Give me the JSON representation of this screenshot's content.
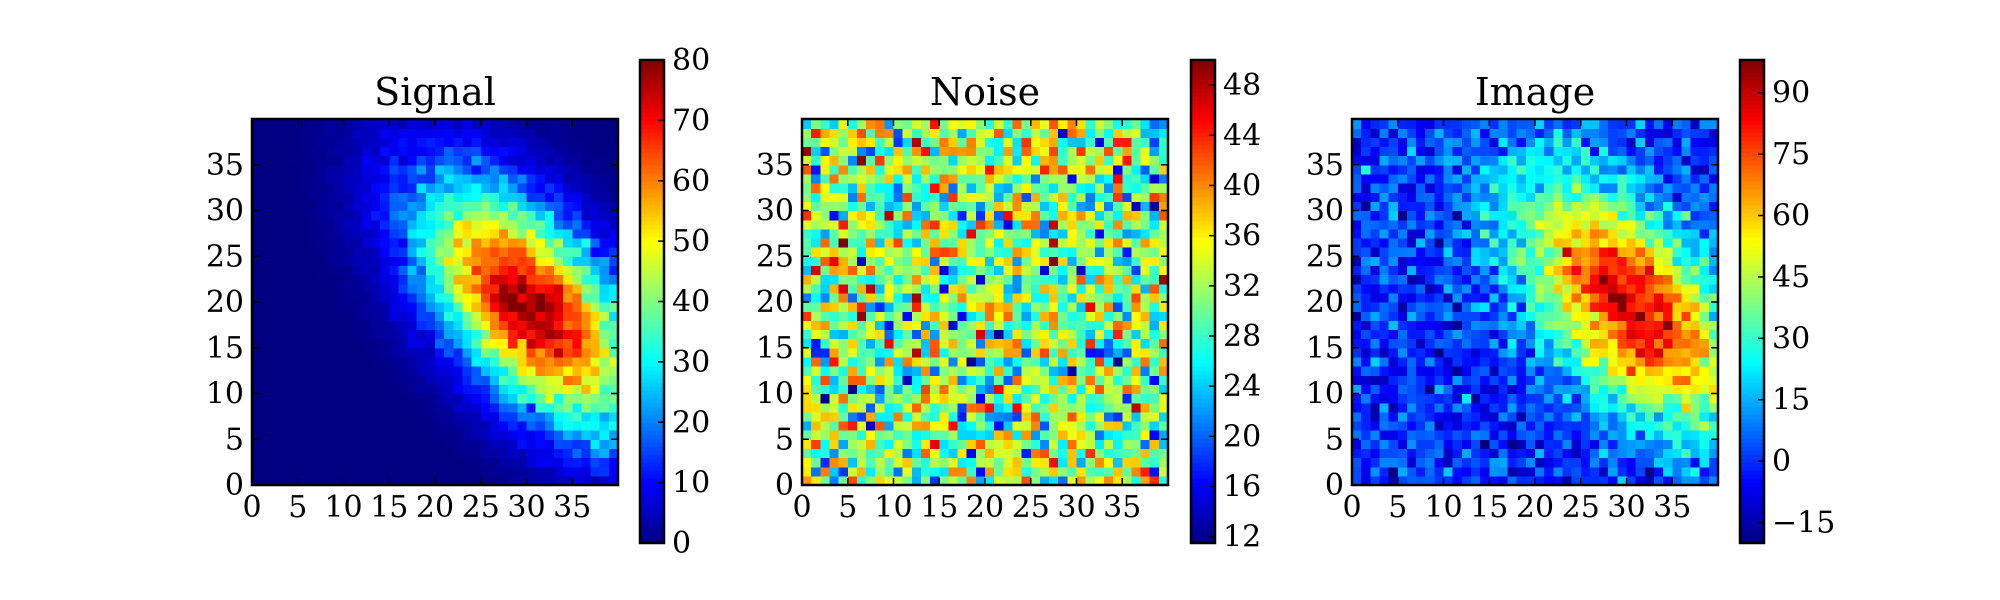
{
  "chart_data": [
    {
      "type": "heatmap",
      "title": "Signal",
      "xlim": [
        0,
        40
      ],
      "ylim": [
        0,
        40
      ],
      "xticks": [
        0,
        5,
        10,
        15,
        20,
        25,
        30,
        35
      ],
      "xticklabels": [
        "0",
        "5",
        "10",
        "15",
        "20",
        "25",
        "30",
        "35"
      ],
      "yticks": [
        0,
        5,
        10,
        15,
        20,
        25,
        30,
        35
      ],
      "yticklabels": [
        "0",
        "5",
        "10",
        "15",
        "20",
        "25",
        "30",
        "35"
      ],
      "colormap": "jet",
      "colorbar": {
        "range": [
          0,
          80
        ],
        "ticks": [
          0,
          10,
          20,
          30,
          40,
          50,
          60,
          70,
          80
        ],
        "ticklabels": [
          "0",
          "10",
          "20",
          "30",
          "40",
          "50",
          "60",
          "70",
          "80"
        ]
      },
      "pattern": {
        "kind": "gaussian_blob",
        "center_x": 30,
        "center_y": 19,
        "peak": 78,
        "floor": 0,
        "sigma_major": 11,
        "sigma_minor": 5.5,
        "angle_deg": -50,
        "noise": 4
      }
    },
    {
      "type": "heatmap",
      "title": "Noise",
      "xlim": [
        0,
        40
      ],
      "ylim": [
        0,
        40
      ],
      "xticks": [
        0,
        5,
        10,
        15,
        20,
        25,
        30,
        35
      ],
      "xticklabels": [
        "0",
        "5",
        "10",
        "15",
        "20",
        "25",
        "30",
        "35"
      ],
      "yticks": [
        0,
        5,
        10,
        15,
        20,
        25,
        30,
        35
      ],
      "yticklabels": [
        "0",
        "5",
        "10",
        "15",
        "20",
        "25",
        "30",
        "35"
      ],
      "colormap": "jet",
      "colorbar": {
        "range": [
          11.5,
          50
        ],
        "ticks": [
          12,
          16,
          20,
          24,
          28,
          32,
          36,
          40,
          44,
          48
        ],
        "ticklabels": [
          "12",
          "16",
          "20",
          "24",
          "28",
          "32",
          "36",
          "40",
          "44",
          "48"
        ]
      },
      "pattern": {
        "kind": "random_noise",
        "mean": 31,
        "std": 6.5,
        "min": 12,
        "max": 50
      }
    },
    {
      "type": "heatmap",
      "title": "Image",
      "xlim": [
        0,
        40
      ],
      "ylim": [
        0,
        40
      ],
      "xticks": [
        0,
        5,
        10,
        15,
        20,
        25,
        30,
        35
      ],
      "xticklabels": [
        "0",
        "5",
        "10",
        "15",
        "20",
        "25",
        "30",
        "35"
      ],
      "yticks": [
        0,
        5,
        10,
        15,
        20,
        25,
        30,
        35
      ],
      "yticklabels": [
        "0",
        "5",
        "10",
        "15",
        "20",
        "25",
        "30",
        "35"
      ],
      "colormap": "jet",
      "colorbar": {
        "range": [
          -20,
          98
        ],
        "ticks": [
          -15,
          0,
          15,
          30,
          45,
          60,
          75,
          90
        ],
        "ticklabels": [
          "−15",
          "0",
          "15",
          "30",
          "45",
          "60",
          "75",
          "90"
        ]
      },
      "pattern": {
        "kind": "gaussian_blob_plus_noise",
        "center_x": 30,
        "center_y": 19,
        "peak": 88,
        "floor": 0,
        "sigma_major": 11,
        "sigma_minor": 5.5,
        "angle_deg": -50,
        "noise": 8
      }
    }
  ]
}
